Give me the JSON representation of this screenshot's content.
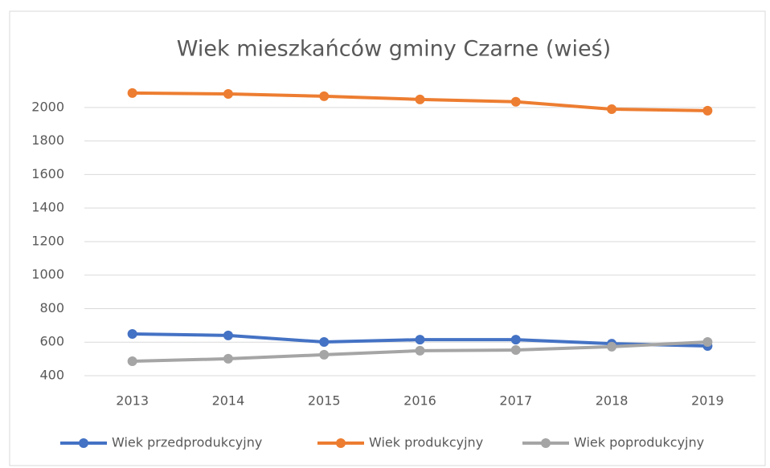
{
  "chart_data": {
    "type": "line",
    "title": "Wiek mieszkańców gminy Czarne (wieś)",
    "categories": [
      "2013",
      "2014",
      "2015",
      "2016",
      "2017",
      "2018",
      "2019"
    ],
    "series": [
      {
        "name": "Wiek przedprodukcyjny",
        "color": "#4472c4",
        "values": [
          649,
          640,
          601,
          615,
          615,
          591,
          577
        ]
      },
      {
        "name": "Wiek produkcyjny",
        "color": "#ed7d31",
        "values": [
          2086,
          2081,
          2067,
          2048,
          2034,
          1990,
          1981
        ]
      },
      {
        "name": "Wiek poprodukcyjny",
        "color": "#a5a5a5",
        "values": [
          486,
          501,
          525,
          549,
          553,
          573,
          601
        ]
      }
    ],
    "ylim": [
      400,
      2100
    ],
    "yticks": [
      400,
      600,
      800,
      1000,
      1200,
      1400,
      1600,
      1800,
      2000
    ],
    "grid": true,
    "legend": "bottom"
  }
}
